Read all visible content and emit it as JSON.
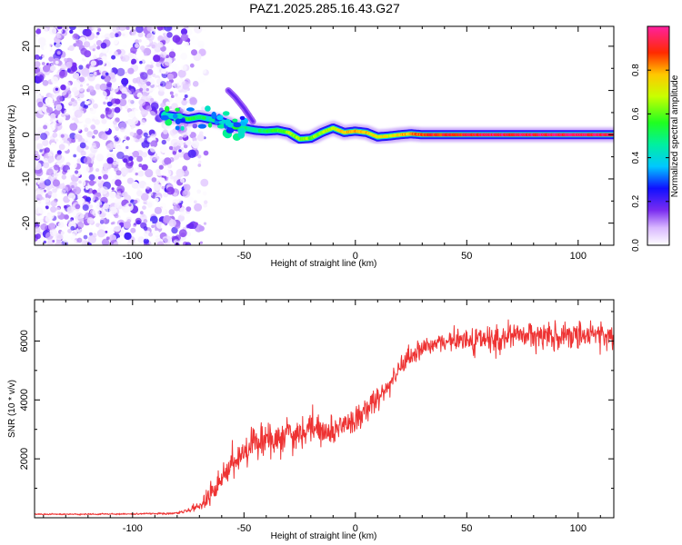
{
  "title": "PAZ1.2025.285.16.43.G27",
  "chart_data": [
    {
      "type": "heatmap",
      "name": "spectrogram",
      "xlabel": "Height of straight line (km)",
      "ylabel": "Frequency (Hz)",
      "xlim": [
        -144,
        116
      ],
      "ylim": [
        -25,
        24.5
      ],
      "xticks": [
        -100,
        -50,
        0,
        50,
        100
      ],
      "xtick_labels": [
        "-100",
        "-50",
        "0",
        "50",
        "100"
      ],
      "yticks": [
        -20,
        -10,
        0,
        10,
        20
      ],
      "ytick_labels": [
        "-20",
        "-10",
        "0",
        "10",
        "20"
      ],
      "colorbar": {
        "label": "Normalized spectral amplitude",
        "range": [
          0,
          1
        ],
        "ticks": [
          0.0,
          0.2,
          0.4,
          0.6,
          0.8
        ],
        "tick_labels": [
          "0.0",
          "0.2",
          "0.4",
          "0.6",
          "0.8"
        ]
      },
      "noise_region_x": [
        -144,
        -75
      ],
      "signal_track": {
        "x": [
          -86,
          -80,
          -75,
          -70,
          -65,
          -60,
          -55,
          -50,
          -45,
          -40,
          -35,
          -30,
          -25,
          -20,
          -15,
          -10,
          -5,
          0,
          5,
          10,
          15,
          20,
          25,
          30,
          40,
          50,
          60,
          70,
          80,
          90,
          100,
          116
        ],
        "freq": [
          4.5,
          4,
          3.5,
          4,
          3.5,
          3,
          2,
          1.5,
          1,
          0.8,
          1,
          0.5,
          -1,
          -0.8,
          0.5,
          1.5,
          0.5,
          0.8,
          0.5,
          -0.5,
          -0.3,
          0,
          0.2,
          0,
          0,
          0,
          0,
          0,
          0,
          0,
          0,
          0
        ],
        "amplitude": [
          0.25,
          0.4,
          0.55,
          0.5,
          0.45,
          0.4,
          0.4,
          0.45,
          0.45,
          0.55,
          0.55,
          0.65,
          0.65,
          0.6,
          0.65,
          0.7,
          0.75,
          0.8,
          0.78,
          0.72,
          0.7,
          0.75,
          0.82,
          0.85,
          0.9,
          0.9,
          0.95,
          0.95,
          0.95,
          0.95,
          0.95,
          0.95
        ]
      },
      "secondary_track": {
        "x": [
          -57,
          -54,
          -50,
          -46
        ],
        "freq": [
          10,
          8.5,
          6,
          3
        ],
        "amplitude": [
          0.12,
          0.12,
          0.1,
          0.08
        ]
      }
    },
    {
      "type": "line",
      "name": "snr",
      "xlabel": "Height of straight line (km)",
      "ylabel": "SNR (10 * v/v)",
      "xlim": [
        -144,
        116
      ],
      "ylim": [
        0,
        7400
      ],
      "xticks": [
        -100,
        -50,
        0,
        50,
        100
      ],
      "xtick_labels": [
        "-100",
        "-50",
        "0",
        "50",
        "100"
      ],
      "yticks": [
        2000,
        4000,
        6000
      ],
      "ytick_labels": [
        "2000",
        "4000",
        "6000"
      ],
      "series": [
        {
          "name": "SNR",
          "color": "#ee3333",
          "x": [
            -144,
            -120,
            -100,
            -80,
            -75,
            -70,
            -65,
            -60,
            -55,
            -50,
            -45,
            -40,
            -35,
            -30,
            -25,
            -20,
            -15,
            -10,
            -5,
            0,
            5,
            10,
            15,
            20,
            25,
            30,
            35,
            40,
            50,
            60,
            70,
            80,
            90,
            100,
            110,
            116
          ],
          "y": [
            120,
            120,
            130,
            150,
            260,
            400,
            800,
            1300,
            1800,
            2200,
            2500,
            2700,
            2600,
            3000,
            2800,
            3100,
            3000,
            2900,
            3200,
            3300,
            3700,
            4000,
            4500,
            5100,
            5500,
            5800,
            5900,
            6000,
            6050,
            6100,
            6200,
            6200,
            6200,
            6200,
            6150,
            6100
          ],
          "noise": [
            30,
            30,
            30,
            50,
            90,
            250,
            500,
            600,
            700,
            700,
            700,
            700,
            700,
            700,
            650,
            650,
            600,
            600,
            600,
            600,
            550,
            500,
            500,
            450,
            450,
            400,
            400,
            400,
            500,
            600,
            600,
            600,
            600,
            550,
            550,
            550
          ]
        }
      ]
    }
  ]
}
